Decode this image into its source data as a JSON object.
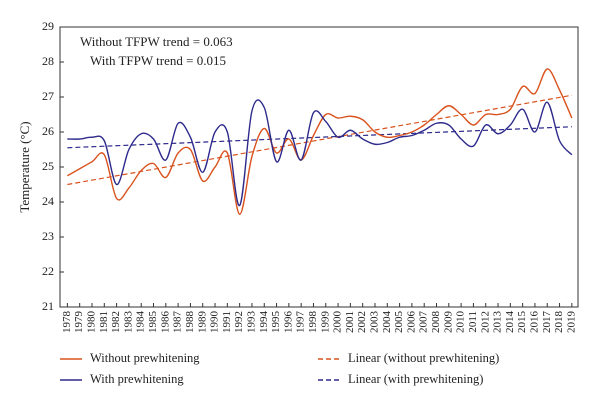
{
  "chart_data": {
    "type": "line",
    "y_label": "Temperature (°C)",
    "annotations": [
      {
        "text": "Without TFPW trend = 0.063",
        "color": "#d9531e"
      },
      {
        "text": "With TFPW trend = 0.015",
        "color": "#2e2a8c"
      }
    ],
    "x": [
      1978,
      1979,
      1980,
      1981,
      1982,
      1983,
      1984,
      1985,
      1986,
      1987,
      1988,
      1989,
      1990,
      1991,
      1992,
      1993,
      1994,
      1995,
      1996,
      1997,
      1998,
      1999,
      2000,
      2001,
      2002,
      2003,
      2004,
      2005,
      2006,
      2007,
      2008,
      2009,
      2010,
      2011,
      2012,
      2013,
      2014,
      2015,
      2016,
      2017,
      2018,
      2019
    ],
    "series": [
      {
        "name": "Without prewhitening",
        "color": "#d9531e",
        "values": [
          24.75,
          24.95,
          25.15,
          25.35,
          24.1,
          24.4,
          24.9,
          25.1,
          24.7,
          25.4,
          25.5,
          24.6,
          25.0,
          25.4,
          23.65,
          25.3,
          26.1,
          25.4,
          25.8,
          25.2,
          25.9,
          26.5,
          26.4,
          26.45,
          26.35,
          26.0,
          25.85,
          25.9,
          26.0,
          26.2,
          26.5,
          26.75,
          26.5,
          26.2,
          26.5,
          26.5,
          26.65,
          27.3,
          27.1,
          27.8,
          27.2,
          26.4
        ]
      },
      {
        "name": "With prewhitening",
        "color": "#2e2a8c",
        "values": [
          25.8,
          25.8,
          25.85,
          25.75,
          24.5,
          25.5,
          25.95,
          25.8,
          25.2,
          26.25,
          25.85,
          24.85,
          26.0,
          26.0,
          23.9,
          26.6,
          26.7,
          25.15,
          26.05,
          25.2,
          26.55,
          26.3,
          25.85,
          26.05,
          25.8,
          25.65,
          25.7,
          25.85,
          25.9,
          26.05,
          26.25,
          26.2,
          25.8,
          25.6,
          26.2,
          25.95,
          26.2,
          26.65,
          26.0,
          26.85,
          25.75,
          25.35
        ]
      }
    ],
    "trend_lines": [
      {
        "name": "Linear (without prewhitening)",
        "color": "#d9531e",
        "x": [
          1978,
          2019
        ],
        "values": [
          24.5,
          27.05
        ]
      },
      {
        "name": "Linear (with prewhitening)",
        "color": "#2e2a8c",
        "x": [
          1978,
          2019
        ],
        "values": [
          25.55,
          26.15
        ]
      }
    ],
    "xlim": [
      1977.4,
      2019.5
    ],
    "xticks": [
      1978,
      1979,
      1980,
      1981,
      1982,
      1983,
      1984,
      1985,
      1986,
      1987,
      1988,
      1989,
      1990,
      1991,
      1992,
      1993,
      1994,
      1995,
      1996,
      1997,
      1998,
      1999,
      2000,
      2001,
      2002,
      2003,
      2004,
      2005,
      2006,
      2007,
      2008,
      2009,
      2010,
      2011,
      2012,
      2013,
      2014,
      2015,
      2016,
      2017,
      2018,
      2019
    ],
    "ylim": [
      21,
      29
    ],
    "yticks": [
      21,
      22,
      23,
      24,
      25,
      26,
      27,
      28,
      29
    ]
  }
}
